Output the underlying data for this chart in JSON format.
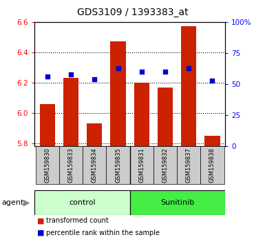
{
  "title": "GDS3109 / 1393383_at",
  "samples": [
    "GSM159830",
    "GSM159833",
    "GSM159834",
    "GSM159835",
    "GSM159831",
    "GSM159832",
    "GSM159837",
    "GSM159838"
  ],
  "groups": [
    "control",
    "control",
    "control",
    "control",
    "Sunitinib",
    "Sunitinib",
    "Sunitinib",
    "Sunitinib"
  ],
  "transformed_count": [
    6.06,
    6.23,
    5.93,
    6.47,
    6.2,
    6.17,
    6.57,
    5.85
  ],
  "percentile_rank": [
    56,
    58,
    54,
    63,
    60,
    60,
    63,
    53
  ],
  "ylim_left": [
    5.78,
    6.6
  ],
  "ylim_right": [
    0,
    100
  ],
  "yticks_left": [
    5.8,
    6.0,
    6.2,
    6.4,
    6.6
  ],
  "yticks_right": [
    0,
    25,
    50,
    75,
    100
  ],
  "bar_color": "#cc2200",
  "dot_color": "#0000cc",
  "control_bg": "#ccffcc",
  "sunitinib_bg": "#44ee44",
  "group_divider": 4,
  "bar_width": 0.65,
  "tick_bg": "#cccccc",
  "legend_bar_label": "transformed count",
  "legend_dot_label": "percentile rank within the sample",
  "agent_label": "agent",
  "fig_width": 3.85,
  "fig_height": 3.54,
  "dpi": 100
}
